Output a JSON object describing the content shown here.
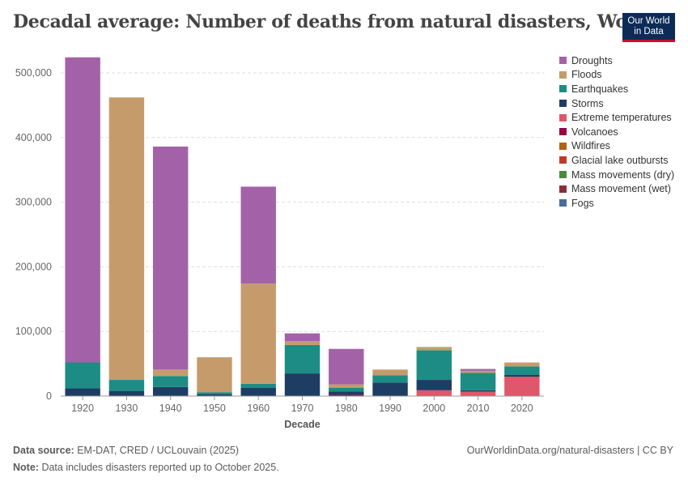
{
  "header": {
    "title": "Decadal average: Number of deaths from natural disasters, World",
    "logo_line1": "Our World",
    "logo_line2": "in Data"
  },
  "footer": {
    "source_label": "Data source:",
    "source_text": "EM-DAT, CRED / UCLouvain (2025)",
    "note_label": "Note:",
    "note_text": "Data includes disasters reported up to October 2025.",
    "url_text": "OurWorldinData.org/natural-disasters | CC BY"
  },
  "chart_data": {
    "type": "bar",
    "stacked": true,
    "xlabel": "Decade",
    "ylabel": "",
    "ylim": [
      0,
      525000
    ],
    "yticks": [
      0,
      100000,
      200000,
      300000,
      400000,
      500000
    ],
    "ytick_labels": [
      "0",
      "100,000",
      "200,000",
      "300,000",
      "400,000",
      "500,000"
    ],
    "grid": true,
    "legend_position": "right",
    "categories": [
      "1920",
      "1930",
      "1940",
      "1950",
      "1960",
      "1970",
      "1980",
      "1990",
      "2000",
      "2010",
      "2020"
    ],
    "stack_order": [
      "Fogs",
      "Mass movement (wet)",
      "Mass movements (dry)",
      "Glacial lake outbursts",
      "Wildfires",
      "Volcanoes",
      "Extreme temperatures",
      "Storms",
      "Earthquakes",
      "Floods",
      "Droughts"
    ],
    "series": [
      {
        "name": "Droughts",
        "color": "#a362a8",
        "values": [
          472000,
          0,
          345000,
          0,
          150000,
          12000,
          55000,
          0,
          0,
          3000,
          0
        ]
      },
      {
        "name": "Floods",
        "color": "#c59b6c",
        "values": [
          0,
          437000,
          10000,
          54000,
          155000,
          6000,
          5000,
          9000,
          5000,
          3000,
          6000
        ]
      },
      {
        "name": "Earthquakes",
        "color": "#1c8c84",
        "values": [
          40000,
          17000,
          17000,
          3000,
          6000,
          44000,
          6000,
          11000,
          46000,
          27000,
          13000
        ]
      },
      {
        "name": "Storms",
        "color": "#1d3d63",
        "values": [
          12000,
          8000,
          14000,
          3000,
          13000,
          35000,
          5000,
          21000,
          16000,
          2000,
          3000
        ]
      },
      {
        "name": "Extreme temperatures",
        "color": "#e0566a",
        "values": [
          0,
          0,
          0,
          0,
          0,
          0,
          0,
          0,
          9000,
          7000,
          30000
        ]
      },
      {
        "name": "Volcanoes",
        "color": "#970046",
        "values": [
          0,
          0,
          0,
          0,
          0,
          0,
          2000,
          0,
          0,
          0,
          0
        ]
      },
      {
        "name": "Wildfires",
        "color": "#b16214",
        "values": [
          0,
          0,
          0,
          0,
          0,
          0,
          0,
          0,
          0,
          0,
          0
        ]
      },
      {
        "name": "Glacial lake outbursts",
        "color": "#c0392b",
        "values": [
          0,
          0,
          0,
          0,
          0,
          0,
          0,
          0,
          0,
          0,
          0
        ]
      },
      {
        "name": "Mass movements (dry)",
        "color": "#4c8a3d",
        "values": [
          0,
          0,
          0,
          0,
          0,
          0,
          0,
          0,
          0,
          0,
          0
        ]
      },
      {
        "name": "Mass movement (wet)",
        "color": "#883039",
        "values": [
          0,
          0,
          0,
          0,
          0,
          0,
          0,
          0,
          0,
          0,
          0
        ]
      },
      {
        "name": "Fogs",
        "color": "#4c6a9c",
        "values": [
          0,
          0,
          0,
          0,
          0,
          0,
          0,
          0,
          0,
          0,
          0
        ]
      }
    ]
  }
}
